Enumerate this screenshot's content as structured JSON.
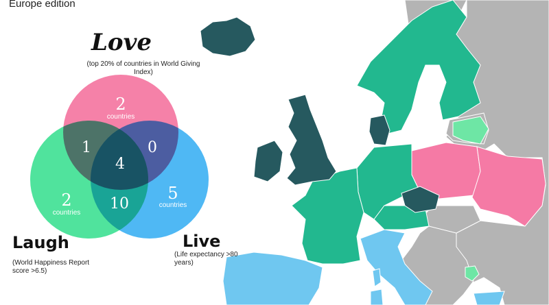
{
  "subtitle": "Europe edition",
  "categories": {
    "love": {
      "title": "Love",
      "note": "(top 20% of countries in World Giving Index)",
      "color": "#f46f9c"
    },
    "laugh": {
      "title": "Laugh",
      "note": "(World Happiness Report score >6.5)",
      "color": "#37e08f"
    },
    "live": {
      "title": "Live",
      "note": "(Life expectancy >80 years)",
      "color": "#36aef3"
    }
  },
  "venn": {
    "love_only": {
      "count": "2",
      "unit": "countries"
    },
    "laugh_only": {
      "count": "2",
      "unit": "countries"
    },
    "live_only": {
      "count": "5",
      "unit": "countries"
    },
    "love_laugh": "1",
    "love_live": "0",
    "laugh_live": "10",
    "all_three": "4"
  },
  "map_colors": {
    "sea": "#ffffff",
    "other": "#b4b4b4",
    "all_three": "#26595f",
    "laugh_live": "#22b88f",
    "love_only": "#f57aa5",
    "live_only": "#6fc7f0",
    "laugh_only": "#6ee6a5"
  },
  "map_icon": "europe-map"
}
